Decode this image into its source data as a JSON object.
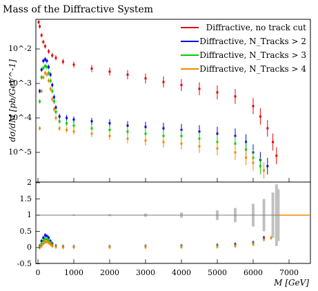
{
  "chart_data": [
    {
      "type": "scatter",
      "title": "Mass of the Diffractive System",
      "ylabel": "dσ/dM [pb/GeV^-1]",
      "yscale": "log",
      "ylim": [
        2e-06,
        0.08
      ],
      "xlim": [
        0,
        7500
      ],
      "grid": false,
      "legend_position": "top-right",
      "y_tick_labels": [
        "10^-2",
        "10^-3",
        "10^-4",
        "10^-5"
      ],
      "series": [
        {
          "name": "Diffractive, no track cut",
          "color": "#e00000",
          "x": [
            20,
            50,
            100,
            150,
            200,
            300,
            400,
            500,
            700,
            1000,
            1500,
            2000,
            2500,
            3000,
            3500,
            4000,
            4500,
            5000,
            5500,
            6000,
            6200,
            6400,
            6550,
            6650
          ],
          "y": [
            0.06,
            0.045,
            0.025,
            0.016,
            0.012,
            0.0085,
            0.0065,
            0.0055,
            0.0043,
            0.0035,
            0.0027,
            0.0022,
            0.0018,
            0.0014,
            0.0011,
            0.0009,
            0.0007,
            0.00055,
            0.00042,
            0.00022,
            0.00011,
            5e-05,
            2e-05,
            8e-06
          ]
        },
        {
          "name": "Diffractive, N_Tracks > 2",
          "color": "#0000e0",
          "x": [
            50,
            100,
            150,
            200,
            250,
            300,
            350,
            400,
            450,
            500,
            600,
            800,
            1000,
            1500,
            2000,
            2500,
            3000,
            3500,
            4000,
            4500,
            5000,
            5500,
            5800,
            6000,
            6200,
            6400
          ],
          "y": [
            0.0006,
            0.0025,
            0.0045,
            0.005,
            0.0045,
            0.003,
            0.0018,
            0.0009,
            0.0004,
            0.0002,
            0.00011,
            0.0001,
            9e-05,
            8e-05,
            7e-05,
            6e-05,
            5.5e-05,
            5e-05,
            4.5e-05,
            4e-05,
            3.5e-05,
            3e-05,
            2e-05,
            1e-05,
            6e-06,
            4e-06
          ]
        },
        {
          "name": "Diffractive, N_Tracks > 3",
          "color": "#00cc00",
          "x": [
            50,
            100,
            150,
            200,
            250,
            300,
            350,
            400,
            450,
            500,
            600,
            800,
            1000,
            1500,
            2000,
            2500,
            3000,
            3500,
            4000,
            4500,
            5000,
            5500,
            5800,
            6000,
            6200
          ],
          "y": [
            0.0003,
            0.0015,
            0.0028,
            0.0032,
            0.003,
            0.002,
            0.0012,
            0.0006,
            0.0003,
            0.00015,
            8e-05,
            7e-05,
            6e-05,
            5e-05,
            4.5e-05,
            4e-05,
            3.5e-05,
            3e-05,
            3e-05,
            2.5e-05,
            2e-05,
            1.8e-05,
            1.2e-05,
            7e-06,
            4e-06
          ]
        },
        {
          "name": "Diffractive, N_Tracks > 4",
          "color": "#ee8800",
          "x": [
            50,
            100,
            150,
            200,
            250,
            300,
            350,
            400,
            450,
            500,
            600,
            800,
            1000,
            1500,
            2000,
            2500,
            3000,
            3500,
            4000,
            4500,
            5000,
            5500,
            5800,
            6000,
            6300
          ],
          "y": [
            5e-05,
            0.0006,
            0.0015,
            0.002,
            0.0018,
            0.0012,
            0.0007,
            0.00035,
            0.00018,
            0.0001,
            5e-05,
            4.5e-05,
            4e-05,
            3.5e-05,
            3e-05,
            2.5e-05,
            2.2e-05,
            2e-05,
            1.8e-05,
            1.5e-05,
            1.3e-05,
            1e-05,
            7e-06,
            5e-06,
            3e-06
          ]
        }
      ]
    },
    {
      "type": "scatter",
      "xlabel": "M [GeV]",
      "ylim": [
        -0.5,
        2
      ],
      "xlim": [
        0,
        7500
      ],
      "y_tick_labels": [
        "2",
        "1.5",
        "1",
        "0.5",
        "0",
        "-0.5"
      ],
      "x_tick_labels": [
        "0",
        "1000",
        "2000",
        "3000",
        "4000",
        "5000",
        "6000",
        "7000"
      ],
      "x_tick_values": [
        0,
        1000,
        2000,
        3000,
        4000,
        5000,
        6000,
        7000
      ],
      "reference_band": {
        "color": "#c0c0c0",
        "x": [
          0,
          1000,
          2000,
          3000,
          4000,
          5000,
          5500,
          6000,
          6300,
          6550,
          6650,
          6700
        ],
        "halfwidth": [
          0.01,
          0.02,
          0.03,
          0.05,
          0.08,
          0.15,
          0.22,
          0.35,
          0.5,
          0.7,
          0.95,
          0.8
        ]
      },
      "series": [
        {
          "name": "Diffractive, N_Tracks > 2",
          "color": "#0000e0",
          "x": [
            50,
            100,
            150,
            200,
            250,
            300,
            350,
            400,
            500,
            700,
            1000,
            2000,
            3000,
            4000,
            5000,
            5500,
            6000,
            6300
          ],
          "y": [
            0.05,
            0.2,
            0.3,
            0.38,
            0.35,
            0.3,
            0.2,
            0.12,
            0.05,
            0.03,
            0.03,
            0.03,
            0.04,
            0.05,
            0.07,
            0.1,
            0.15,
            0.3
          ]
        },
        {
          "name": "Diffractive, N_Tracks > 3",
          "color": "#00cc00",
          "x": [
            50,
            100,
            150,
            200,
            250,
            300,
            350,
            400,
            500,
            700,
            1000,
            2000,
            3000,
            4000,
            5000,
            5500,
            6000
          ],
          "y": [
            0.03,
            0.12,
            0.2,
            0.26,
            0.25,
            0.22,
            0.15,
            0.08,
            0.03,
            0.02,
            0.02,
            0.02,
            0.025,
            0.03,
            0.045,
            0.06,
            0.12
          ]
        },
        {
          "name": "Diffractive, N_Tracks > 4",
          "color": "#ee8800",
          "x": [
            50,
            100,
            150,
            200,
            250,
            300,
            350,
            400,
            500,
            700,
            1000,
            2000,
            3000,
            4000,
            5000,
            5500,
            6000,
            6300,
            6500
          ],
          "y": [
            0.0,
            0.05,
            0.12,
            0.17,
            0.18,
            0.15,
            0.1,
            0.05,
            0.02,
            0.01,
            0.01,
            0.01,
            0.015,
            0.02,
            0.03,
            0.05,
            0.1,
            0.25,
            0.3
          ]
        }
      ]
    }
  ]
}
